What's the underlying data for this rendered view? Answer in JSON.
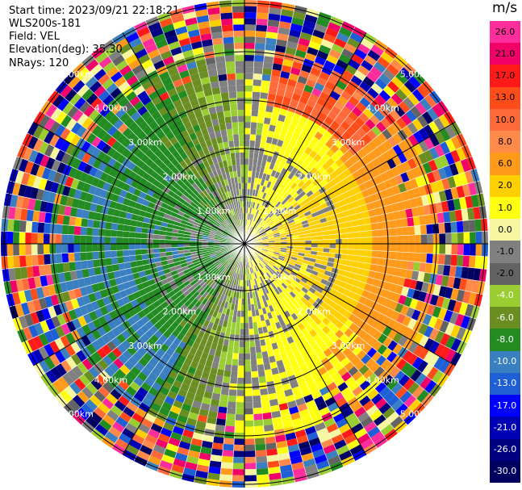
{
  "header": {
    "start_time": "Start time: 2023/09/21 22:18:21",
    "instrument": "WLS200s-181",
    "field": "Field: VEL",
    "elevation": "Elevation(deg): 35.30",
    "nrays": "NRays: 120"
  },
  "colorbar": {
    "unit": "m/s",
    "labels": [
      "26.0",
      "21.0",
      "17.0",
      "13.0",
      "10.0",
      "8.0",
      "6.0",
      "2.0",
      "1.0",
      "0.0",
      "-1.0",
      "-2.0",
      "-4.0",
      "-6.0",
      "-8.0",
      "-10.0",
      "-13.0",
      "-17.0",
      "-21.0",
      "-26.0",
      "-30.0"
    ],
    "colors": [
      "#ff2d9b",
      "#f2006a",
      "#ff1a1a",
      "#ff4d1a",
      "#ff6a3a",
      "#ff8a4a",
      "#ff9a1a",
      "#ffd000",
      "#ffff10",
      "#f6f6a0",
      "#808080",
      "#636363",
      "#9acd32",
      "#6b8e23",
      "#228b22",
      "#3a7fc0",
      "#1e5fd6",
      "#0000ff",
      "#0000b4",
      "#000080",
      "#000060"
    ]
  },
  "chart_data": {
    "type": "heatmap",
    "projection": "polar (PPI scan)",
    "field": "VEL",
    "units": "m/s",
    "nrays": 120,
    "range_ring_labels": [
      "1.00km",
      "2.00km",
      "3.00km",
      "4.00km",
      "5.00km"
    ],
    "vmin": -30.0,
    "vmax": 26.0
  }
}
